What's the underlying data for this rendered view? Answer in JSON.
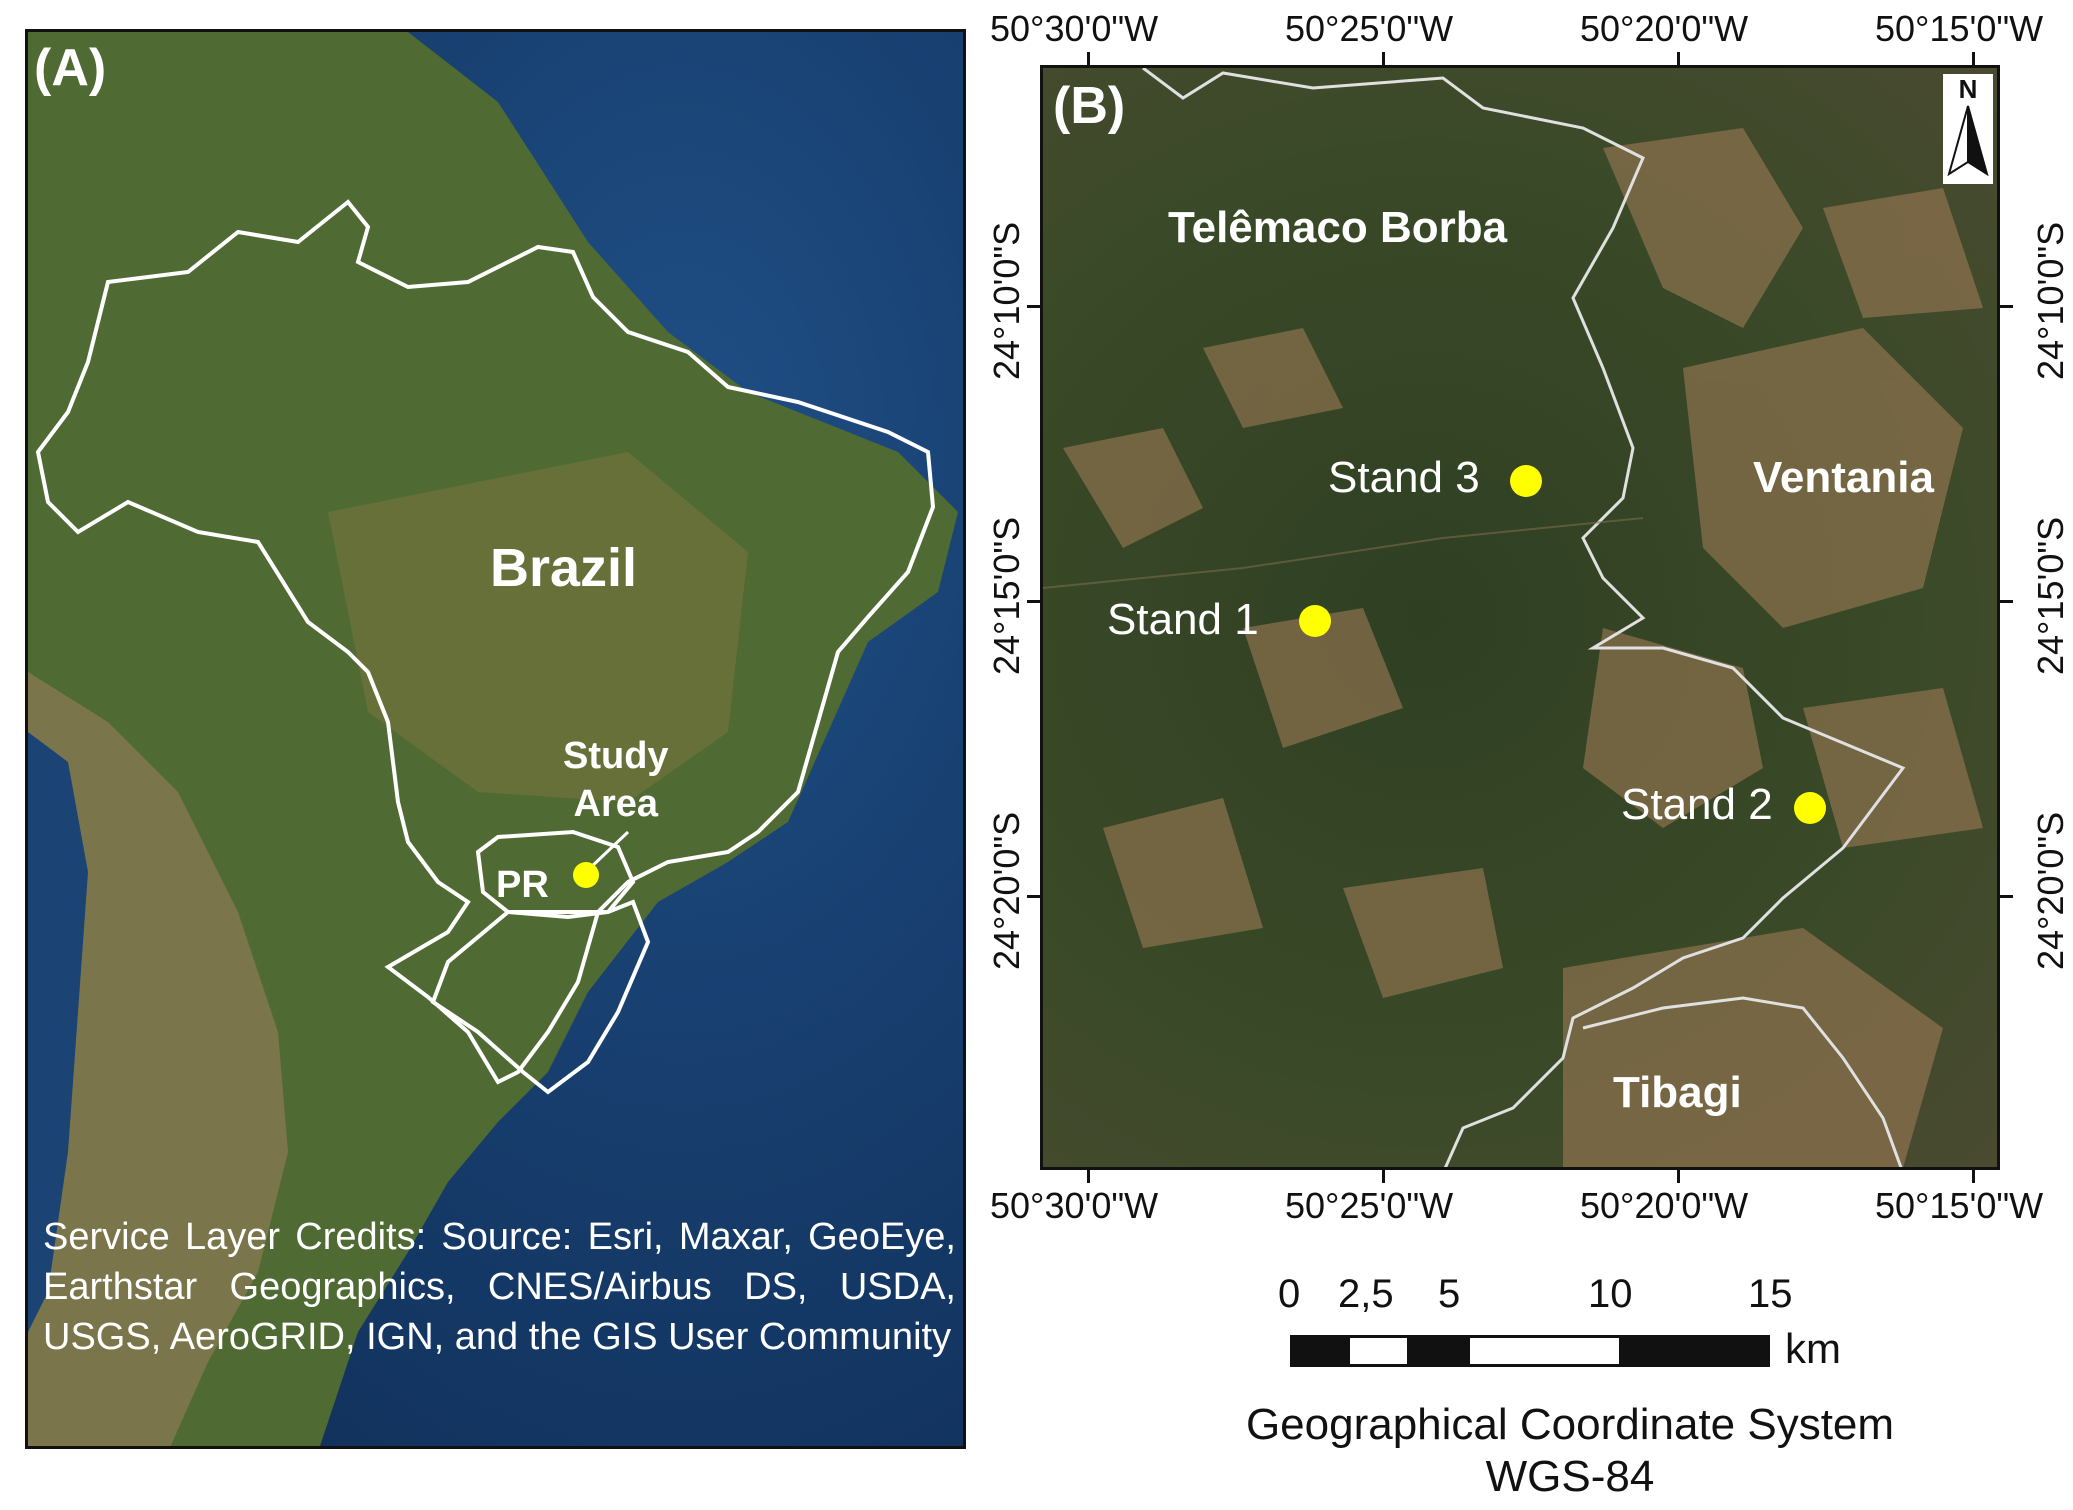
{
  "panel_a": {
    "label": "(A)",
    "country_label": "Brazil",
    "study_area_label_line1": "Study",
    "study_area_label_line2": "Area",
    "state_label": "PR",
    "credits": "Service Layer Credits: Source: Esri, Maxar, GeoEye, Earthstar Geographics, CNES/Airbus DS, USDA, USGS, AeroGRID, IGN, and the GIS User Community",
    "marker_color": "#ffff00"
  },
  "panel_b": {
    "label": "(B)",
    "north_label": "N",
    "towns": [
      "Telêmaco Borba",
      "Ventania",
      "Tibagi"
    ],
    "stands": [
      "Stand 3",
      "Stand 1",
      "Stand 2"
    ],
    "stand_color": "#ffff00",
    "longitude_ticks": [
      "50°30'0\"W",
      "50°25'0\"W",
      "50°20'0\"W",
      "50°15'0\"W"
    ],
    "latitude_ticks": [
      "24°10'0\"S",
      "24°15'0\"S",
      "24°20'0\"S"
    ]
  },
  "scale_bar": {
    "numbers": [
      "0",
      "2,5",
      "5",
      "10",
      "15"
    ],
    "unit": "km"
  },
  "coordinate_system": {
    "line1": "Geographical Coordinate System",
    "line2": "WGS-84"
  }
}
